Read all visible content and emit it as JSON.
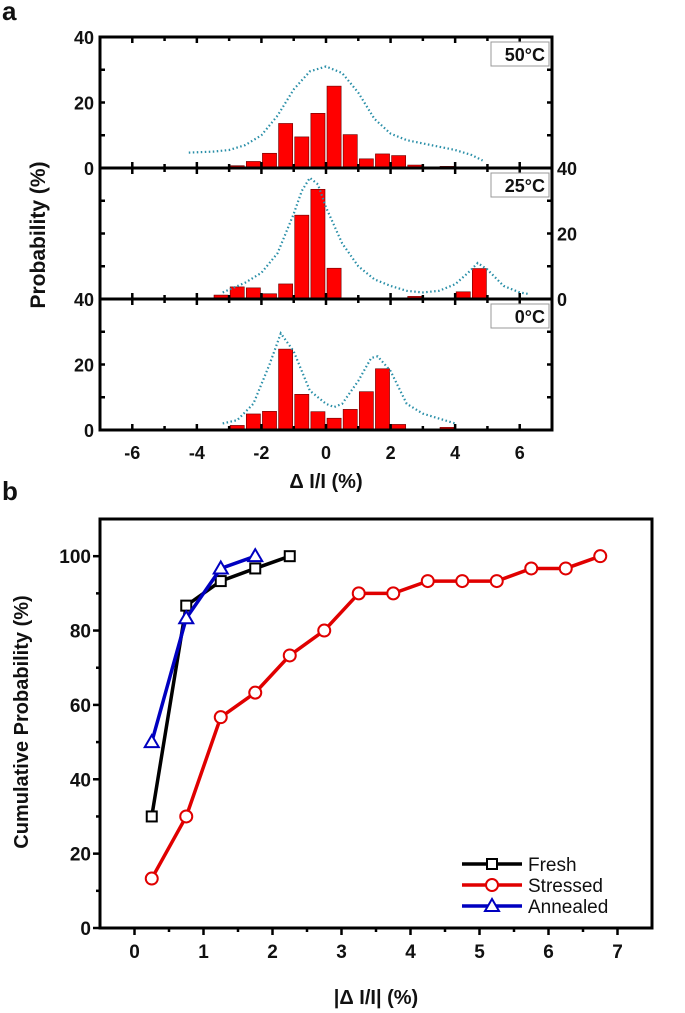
{
  "chart_data": [
    {
      "type": "bar",
      "panel_label": "a",
      "ylabel": "Probability (%)",
      "xlabel": "Δ I/I (%)",
      "xlim": [
        -7,
        7
      ],
      "xticks": [
        -6,
        -4,
        -2,
        0,
        2,
        4,
        6
      ],
      "bin_width": 0.5,
      "bar_color": "#ff0000",
      "fit_color": "#2a8fa8",
      "panels": [
        {
          "name": "50°C",
          "ylim": [
            0,
            40
          ],
          "left_ticks": [
            0,
            20,
            40
          ],
          "right_ticks": [],
          "bars": [
            [
              -4.25,
              0.2
            ],
            [
              -3.25,
              0.3
            ],
            [
              -2.75,
              0.7
            ],
            [
              -2.25,
              2
            ],
            [
              -1.75,
              4.5
            ],
            [
              -1.25,
              13.6
            ],
            [
              -0.75,
              9.5
            ],
            [
              -0.25,
              16.7
            ],
            [
              0.25,
              25
            ],
            [
              0.75,
              10.2
            ],
            [
              1.25,
              2.8
            ],
            [
              1.75,
              4.3
            ],
            [
              2.25,
              3.8
            ],
            [
              2.75,
              0.9
            ],
            [
              3.75,
              0.5
            ],
            [
              5.25,
              0.2
            ]
          ],
          "fit": [
            [
              -4.25,
              4.7
            ],
            [
              -3.5,
              5
            ],
            [
              -3,
              5.5
            ],
            [
              -2.5,
              7
            ],
            [
              -2,
              10
            ],
            [
              -1.5,
              16
            ],
            [
              -1,
              24
            ],
            [
              -0.5,
              29.5
            ],
            [
              0,
              31
            ],
            [
              0.5,
              29
            ],
            [
              1,
              23
            ],
            [
              1.5,
              15
            ],
            [
              2,
              10.5
            ],
            [
              2.5,
              8.5
            ],
            [
              3,
              7.5
            ],
            [
              3.5,
              6.5
            ],
            [
              4,
              5.5
            ],
            [
              4.5,
              4
            ],
            [
              4.85,
              2.3
            ]
          ]
        },
        {
          "name": "25°C",
          "ylim": [
            0,
            40
          ],
          "left_ticks": [],
          "right_ticks": [
            0,
            20,
            40
          ],
          "bars": [
            [
              -3.75,
              0.2
            ],
            [
              -3.25,
              1.2
            ],
            [
              -2.75,
              3.7
            ],
            [
              -2.25,
              3.4
            ],
            [
              -1.75,
              1.6
            ],
            [
              -1.25,
              4.6
            ],
            [
              -0.75,
              25.6
            ],
            [
              -0.25,
              33.5
            ],
            [
              0.25,
              9.4
            ],
            [
              2.25,
              0.2
            ],
            [
              2.75,
              0.8
            ],
            [
              4.25,
              2.2
            ],
            [
              4.75,
              9.3
            ]
          ],
          "fit": [
            [
              -3.2,
              2
            ],
            [
              -2.5,
              5
            ],
            [
              -2,
              8
            ],
            [
              -1.5,
              14
            ],
            [
              -1,
              26
            ],
            [
              -0.75,
              33
            ],
            [
              -0.5,
              37
            ],
            [
              -0.25,
              35
            ],
            [
              0,
              28
            ],
            [
              0.5,
              17
            ],
            [
              1,
              10
            ],
            [
              1.5,
              6
            ],
            [
              2,
              4
            ],
            [
              2.5,
              2.5
            ],
            [
              3,
              2
            ],
            [
              3.5,
              2.5
            ],
            [
              4,
              4.5
            ],
            [
              4.4,
              8
            ],
            [
              4.7,
              11
            ],
            [
              5,
              9
            ],
            [
              5.5,
              4
            ],
            [
              6,
              2
            ],
            [
              6.3,
              1.5
            ]
          ]
        },
        {
          "name": "0°C",
          "ylim": [
            0,
            40
          ],
          "left_ticks": [
            0,
            20,
            40
          ],
          "right_ticks": [],
          "bars": [
            [
              -2.75,
              1.4
            ],
            [
              -2.25,
              4.9
            ],
            [
              -1.75,
              5.7
            ],
            [
              -1.25,
              24.7
            ],
            [
              -0.75,
              10.9
            ],
            [
              -0.25,
              5.6
            ],
            [
              0.25,
              3.6
            ],
            [
              0.75,
              6.3
            ],
            [
              1.25,
              11.7
            ],
            [
              1.75,
              18.7
            ],
            [
              2.25,
              1.7
            ],
            [
              3.25,
              0.3
            ],
            [
              3.75,
              0.8
            ]
          ],
          "fit": [
            [
              -3.2,
              2
            ],
            [
              -2.75,
              3
            ],
            [
              -2.25,
              8
            ],
            [
              -1.75,
              20
            ],
            [
              -1.4,
              29.5
            ],
            [
              -1,
              24
            ],
            [
              -0.5,
              12
            ],
            [
              0,
              8
            ],
            [
              0.25,
              7
            ],
            [
              0.5,
              8
            ],
            [
              1,
              15
            ],
            [
              1.4,
              22
            ],
            [
              1.6,
              22.5
            ],
            [
              2,
              18
            ],
            [
              2.5,
              8
            ],
            [
              3,
              5
            ],
            [
              3.5,
              3.5
            ],
            [
              4,
              2
            ]
          ]
        }
      ]
    },
    {
      "type": "line",
      "panel_label": "b",
      "ylabel": "Cumulative Probability (%)",
      "xlabel": "|Δ I/I| (%)",
      "xlim": [
        -0.5,
        7.5
      ],
      "ylim": [
        0,
        110
      ],
      "xticks": [
        0,
        1,
        2,
        3,
        4,
        5,
        6,
        7
      ],
      "yticks": [
        0,
        20,
        40,
        60,
        80,
        100
      ],
      "legend_position": "bottom-right",
      "series": [
        {
          "name": "Fresh",
          "color": "#000000",
          "marker": "square",
          "x": [
            0.25,
            0.75,
            1.25,
            1.75,
            2.25
          ],
          "y": [
            30,
            86.7,
            93.3,
            96.7,
            100
          ]
        },
        {
          "name": "Stressed",
          "color": "#e00000",
          "marker": "circle",
          "x": [
            0.25,
            0.75,
            1.25,
            1.75,
            2.25,
            2.75,
            3.25,
            3.75,
            4.25,
            4.75,
            5.25,
            5.75,
            6.25,
            6.75
          ],
          "y": [
            13.3,
            30,
            56.7,
            63.3,
            73.3,
            80,
            90,
            90,
            93.3,
            93.3,
            93.3,
            96.7,
            96.7,
            100
          ]
        },
        {
          "name": "Annealed",
          "color": "#0000c0",
          "marker": "triangle",
          "x": [
            0.25,
            0.75,
            1.25,
            1.75
          ],
          "y": [
            50,
            83.3,
            96.7,
            100
          ]
        }
      ]
    }
  ]
}
